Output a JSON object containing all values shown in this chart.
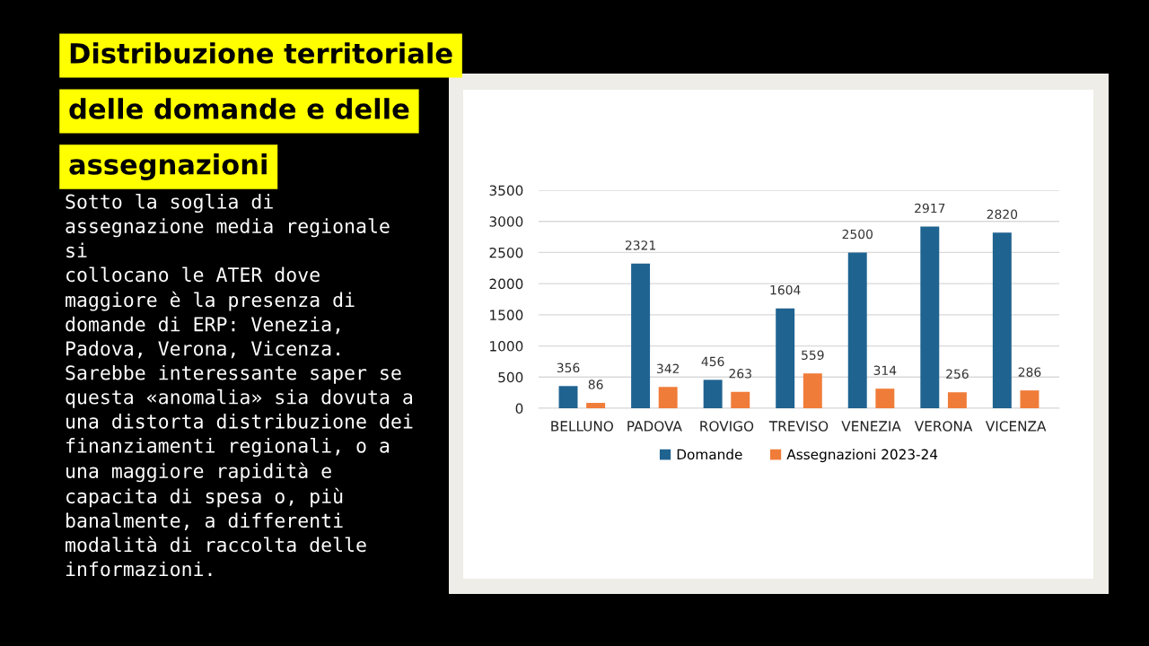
{
  "chart_data": {
    "type": "bar",
    "title": "Distribuzione territoriale\ndelle domande e delle\nassegnazioni",
    "subtitle": "Sotto la soglia di\nassegnazione media regionale\nsi\ncollocano le ATER dove\nmaggiore è la presenza di\ndomande di ERP: Venezia,\nPadova, Verona, Vicenza.\nSarebbe interessante saper se\nquesta «anomalia» sia dovuta a\nuna distorta distribuzione dei\nfinanziamenti regionali, o a\nuna maggiore rapidità e\ncapacita di spesa o, più\nbanalmente, a differenti\nmodalità di raccolta delle\ninformazioni.",
    "categories": [
      "BELLUNO",
      "PADOVA",
      "ROVIGO",
      "TREVISO",
      "VENEZIA",
      "VERONA",
      "VICENZA"
    ],
    "series": [
      {
        "name": "Domande",
        "color": "#1f6391",
        "values": [
          356,
          2321,
          456,
          1604,
          2500,
          2917,
          2820
        ]
      },
      {
        "name": "Assegnazioni 2023-24",
        "color": "#f07c39",
        "values": [
          86,
          342,
          263,
          559,
          314,
          256,
          286
        ]
      }
    ],
    "ylim": [
      0,
      3500
    ],
    "yticks": [
      0,
      500,
      1000,
      1500,
      2000,
      2500,
      3000,
      3500
    ],
    "grid": "y",
    "legend": "bottom",
    "data_labels": true
  }
}
